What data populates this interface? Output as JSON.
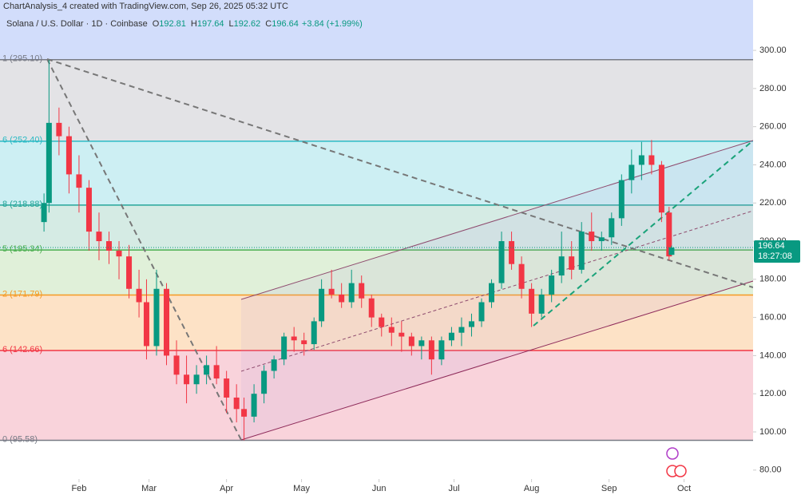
{
  "chart_data": {
    "type": "candlestick",
    "watermark": "ChartAnalysis_4 created with TradingView.com, Sep 26, 2025 05:32 UTC",
    "symbol": "Solana / U.S. Dollar · 1D · Coinbase",
    "ohlc": [
      {
        "key": "O",
        "value": 192.81
      },
      {
        "key": "H",
        "value": 197.64
      },
      {
        "key": "L",
        "value": 192.62
      },
      {
        "key": "C",
        "value": 196.64
      }
    ],
    "change": "+3.84 (+1.99%)",
    "last_price": 196.64,
    "countdown": "18:27:08",
    "up_color": "#089981",
    "down_color": "#f23645",
    "xlim": [
      -0.6,
      300.6
    ],
    "ylim": [
      75.3,
      326.4
    ],
    "xticks": [
      {
        "value": 31,
        "label": "Feb"
      },
      {
        "value": 59,
        "label": "Mar"
      },
      {
        "value": 90,
        "label": "Apr"
      },
      {
        "value": 120,
        "label": "May"
      },
      {
        "value": 151,
        "label": "Jun"
      },
      {
        "value": 181,
        "label": "Jul"
      },
      {
        "value": 212,
        "label": "Aug"
      },
      {
        "value": 243,
        "label": "Sep"
      },
      {
        "value": 273,
        "label": "Oct"
      }
    ],
    "yticks": [
      {
        "value": 80,
        "label": "80.00"
      },
      {
        "value": 100,
        "label": "100.00"
      },
      {
        "value": 120,
        "label": "120.00"
      },
      {
        "value": 140,
        "label": "140.00"
      },
      {
        "value": 160,
        "label": "160.00"
      },
      {
        "value": 180,
        "label": "180.00"
      },
      {
        "value": 200,
        "label": "200.00"
      },
      {
        "value": 220,
        "label": "220.00"
      },
      {
        "value": 240,
        "label": "240.00"
      },
      {
        "value": 260,
        "label": "260.00"
      },
      {
        "value": 280,
        "label": "280.00"
      },
      {
        "value": 300,
        "label": "300.00"
      }
    ],
    "fib_levels": [
      {
        "value": 295.1,
        "label": "1 (295.10)",
        "color": "#787b86",
        "zone": "#e3e3e6"
      },
      {
        "value": 252.4,
        "label": "6 (252.40)",
        "color": "#2bbac4",
        "zone": "#cdeff3"
      },
      {
        "value": 218.88,
        "label": "8 (218.88)",
        "color": "#26a69a",
        "zone": "#d5ebe4"
      },
      {
        "value": 195.34,
        "label": "5 (195.34)",
        "color": "#4caf50",
        "zone": "#e0f0d9"
      },
      {
        "value": 171.79,
        "label": "2 (171.79)",
        "color": "#f59a23",
        "zone": "#fde2c6"
      },
      {
        "value": 142.66,
        "label": "6 (142.66)",
        "color": "#f23645",
        "zone": "#f9d3db"
      },
      {
        "value": 95.58,
        "label": "0 (95.58)",
        "color": "#787b86",
        "zone": "#ffffff"
      }
    ],
    "top_zone": "#d2ddfb",
    "x": [
      17,
      19,
      23,
      27,
      31,
      35,
      39,
      43,
      47,
      51,
      55,
      58,
      62,
      66,
      70,
      74,
      78,
      82,
      86,
      90,
      94,
      97,
      101,
      105,
      109,
      113,
      117,
      121,
      125,
      128,
      132,
      136,
      140,
      144,
      148,
      152,
      156,
      160,
      164,
      168,
      172,
      176,
      180,
      184,
      188,
      192,
      196,
      200,
      204,
      208,
      212,
      216,
      220,
      224,
      228,
      232,
      236,
      240,
      244,
      248,
      252,
      256,
      260,
      264,
      267,
      268
    ],
    "open": [
      210,
      220,
      262,
      255,
      235,
      228,
      205,
      200,
      195,
      192,
      175,
      168,
      145,
      175,
      140,
      130,
      125,
      130,
      135,
      128,
      118,
      112,
      108,
      120,
      132,
      138,
      150,
      148,
      146,
      158,
      175,
      172,
      168,
      178,
      170,
      160,
      155,
      152,
      150,
      145,
      148,
      138,
      148,
      152,
      155,
      158,
      168,
      178,
      200,
      188,
      175,
      162,
      172,
      182,
      192,
      185,
      205,
      200,
      202,
      212,
      232,
      240,
      245,
      240,
      215,
      192.81
    ],
    "high": [
      225,
      295,
      270,
      260,
      245,
      232,
      215,
      205,
      200,
      198,
      185,
      180,
      185,
      178,
      148,
      140,
      135,
      140,
      145,
      132,
      125,
      118,
      125,
      135,
      140,
      152,
      155,
      152,
      160,
      180,
      185,
      178,
      185,
      182,
      172,
      162,
      160,
      158,
      152,
      150,
      150,
      150,
      155,
      160,
      162,
      170,
      180,
      205,
      205,
      192,
      178,
      175,
      185,
      205,
      200,
      210,
      215,
      205,
      215,
      235,
      248,
      252,
      253,
      242,
      218,
      197.64
    ],
    "low": [
      205,
      215,
      245,
      225,
      215,
      195,
      190,
      188,
      180,
      170,
      160,
      138,
      140,
      135,
      125,
      115,
      120,
      125,
      125,
      110,
      105,
      95.58,
      105,
      115,
      128,
      135,
      142,
      140,
      143,
      155,
      170,
      165,
      165,
      165,
      155,
      150,
      145,
      142,
      140,
      138,
      130,
      135,
      145,
      145,
      150,
      155,
      165,
      175,
      185,
      170,
      155,
      160,
      168,
      178,
      180,
      183,
      195,
      195,
      198,
      208,
      225,
      232,
      235,
      210,
      190,
      192.62
    ],
    "close": [
      220,
      262,
      255,
      235,
      228,
      205,
      200,
      195,
      192,
      175,
      168,
      145,
      175,
      140,
      130,
      125,
      130,
      135,
      128,
      118,
      112,
      108,
      120,
      132,
      138,
      150,
      148,
      146,
      158,
      175,
      172,
      168,
      178,
      170,
      160,
      155,
      152,
      150,
      145,
      148,
      138,
      148,
      152,
      155,
      158,
      168,
      178,
      200,
      188,
      175,
      162,
      172,
      182,
      192,
      185,
      205,
      200,
      202,
      212,
      232,
      240,
      245,
      240,
      215,
      192,
      196.64
    ]
  }
}
